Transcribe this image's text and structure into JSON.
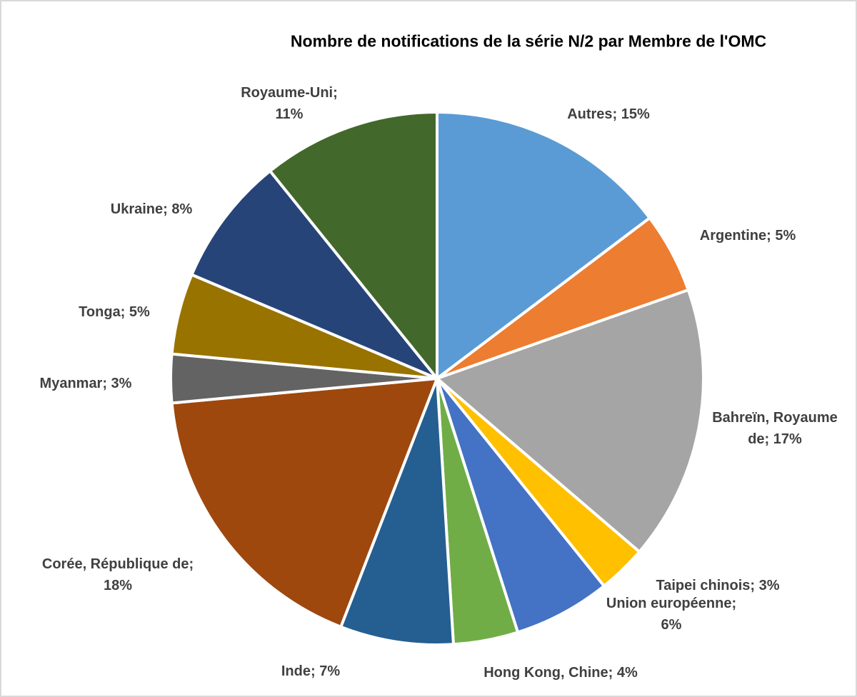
{
  "chart_data": {
    "type": "pie",
    "title": "Nombre de notifications de la série N/2 par Membre de l'OMC",
    "categories": [
      "Autres",
      "Argentine",
      "Bahreïn, Royaume de",
      "Taipei chinois",
      "Union européenne",
      "Hong Kong, Chine",
      "Inde",
      "Corée, République de",
      "Myanmar",
      "Tonga",
      "Ukraine",
      "Royaume-Uni"
    ],
    "values": [
      15,
      5,
      17,
      3,
      6,
      4,
      7,
      18,
      3,
      5,
      8,
      11
    ],
    "value_labels": [
      "Autres; 15%",
      "Argentine; 5%",
      "Bahreïn, Royaume de; 17%",
      "Taipei chinois; 3%",
      "Union européenne; 6%",
      "Hong Kong, Chine; 4%",
      "Inde; 7%",
      "Corée, République de; 18%",
      "Myanmar; 3%",
      "Tonga; 5%",
      "Ukraine; 8%",
      "Royaume-Uni; 11%"
    ],
    "colors": [
      "#5B9BD5",
      "#ED7D31",
      "#A5A5A5",
      "#FFC000",
      "#4472C4",
      "#70AD47",
      "#255E91",
      "#9E480E",
      "#636363",
      "#997300",
      "#264478",
      "#43682B"
    ]
  }
}
